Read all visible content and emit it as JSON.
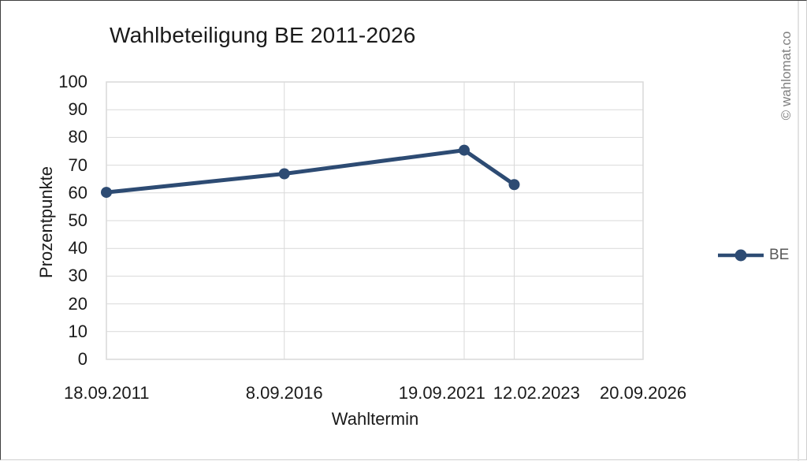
{
  "title": "Wahlbeteiligung BE 2011-2026",
  "watermark": "© wahlomat.co",
  "legend": {
    "label": "BE"
  },
  "colors": {
    "series": "#2D4B73",
    "grid": "#D9D9D9",
    "plot_border": "#D9D9D9",
    "text": "#1A1A1A",
    "legend_text": "#595959",
    "watermark": "#7F7F7F"
  },
  "chart_data": {
    "type": "line",
    "title": "Wahlbeteiligung BE 2011-2026",
    "xlabel": "Wahltermin",
    "ylabel": "Prozentpunkte",
    "x_axis_type": "date",
    "x": [
      "18.09.2011",
      "8.09.2016",
      "19.09.2021",
      "12.02.2023",
      "20.09.2026"
    ],
    "series": [
      {
        "name": "BE",
        "values": [
          60.2,
          66.9,
          75.4,
          63.0,
          null
        ]
      }
    ],
    "ylim": [
      0,
      100
    ],
    "ytick_step": 10,
    "yticks": [
      0,
      10,
      20,
      30,
      40,
      50,
      60,
      70,
      80,
      90,
      100
    ],
    "grid": true,
    "legend_position": "right"
  }
}
